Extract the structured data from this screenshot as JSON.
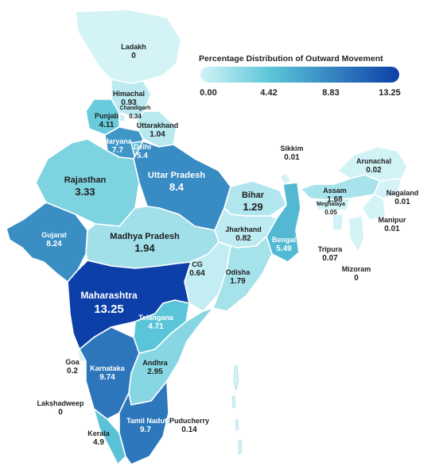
{
  "legend": {
    "title": "Percentage Distribution of Outward Movement",
    "ticks": [
      "0.00",
      "4.42",
      "8.83",
      "13.25"
    ],
    "color_low": "#d3f3f6",
    "color_mid": "#5bc6d8",
    "color_high": "#0d3fa8"
  },
  "regions": [
    {
      "name": "Ladakh",
      "value": "0"
    },
    {
      "name": "Himachal",
      "value": "0.93"
    },
    {
      "name": "Chandigarh",
      "value": "0.34"
    },
    {
      "name": "Punjab",
      "value": "4.11"
    },
    {
      "name": "Uttarakhand",
      "value": "1.04"
    },
    {
      "name": "Haryana",
      "value": "7.7"
    },
    {
      "name": "Delhi",
      "value": "5.4"
    },
    {
      "name": "Rajasthan",
      "value": "3.33"
    },
    {
      "name": "Uttar Pradesh",
      "value": "8.4"
    },
    {
      "name": "Bihar",
      "value": "1.29"
    },
    {
      "name": "Sikkim",
      "value": "0.01"
    },
    {
      "name": "Arunachal",
      "value": "0.02"
    },
    {
      "name": "Assam",
      "value": "1.68"
    },
    {
      "name": "Nagaland",
      "value": "0.01"
    },
    {
      "name": "Meghalaya",
      "value": "0.05"
    },
    {
      "name": "Manipur",
      "value": "0.01"
    },
    {
      "name": "Tripura",
      "value": "0.07"
    },
    {
      "name": "Mizoram",
      "value": "0"
    },
    {
      "name": "Jharkhand",
      "value": "0.82"
    },
    {
      "name": "Bengal",
      "value": "5.49"
    },
    {
      "name": "Gujarat",
      "value": "8.24"
    },
    {
      "name": "Madhya Pradesh",
      "value": "1.94"
    },
    {
      "name": "CG",
      "value": "0.64"
    },
    {
      "name": "Odisha",
      "value": "1.79"
    },
    {
      "name": "Maharashtra",
      "value": "13.25"
    },
    {
      "name": "Telangana",
      "value": "4.71"
    },
    {
      "name": "Goa",
      "value": "0.2"
    },
    {
      "name": "Andhra",
      "value": "2.95"
    },
    {
      "name": "Karnataka",
      "value": "9.74"
    },
    {
      "name": "Lakshadweep",
      "value": "0"
    },
    {
      "name": "Tamil Nadu",
      "value": "9.7"
    },
    {
      "name": "Puducherry",
      "value": "0.14"
    },
    {
      "name": "Kerala",
      "value": "4.9"
    }
  ]
}
